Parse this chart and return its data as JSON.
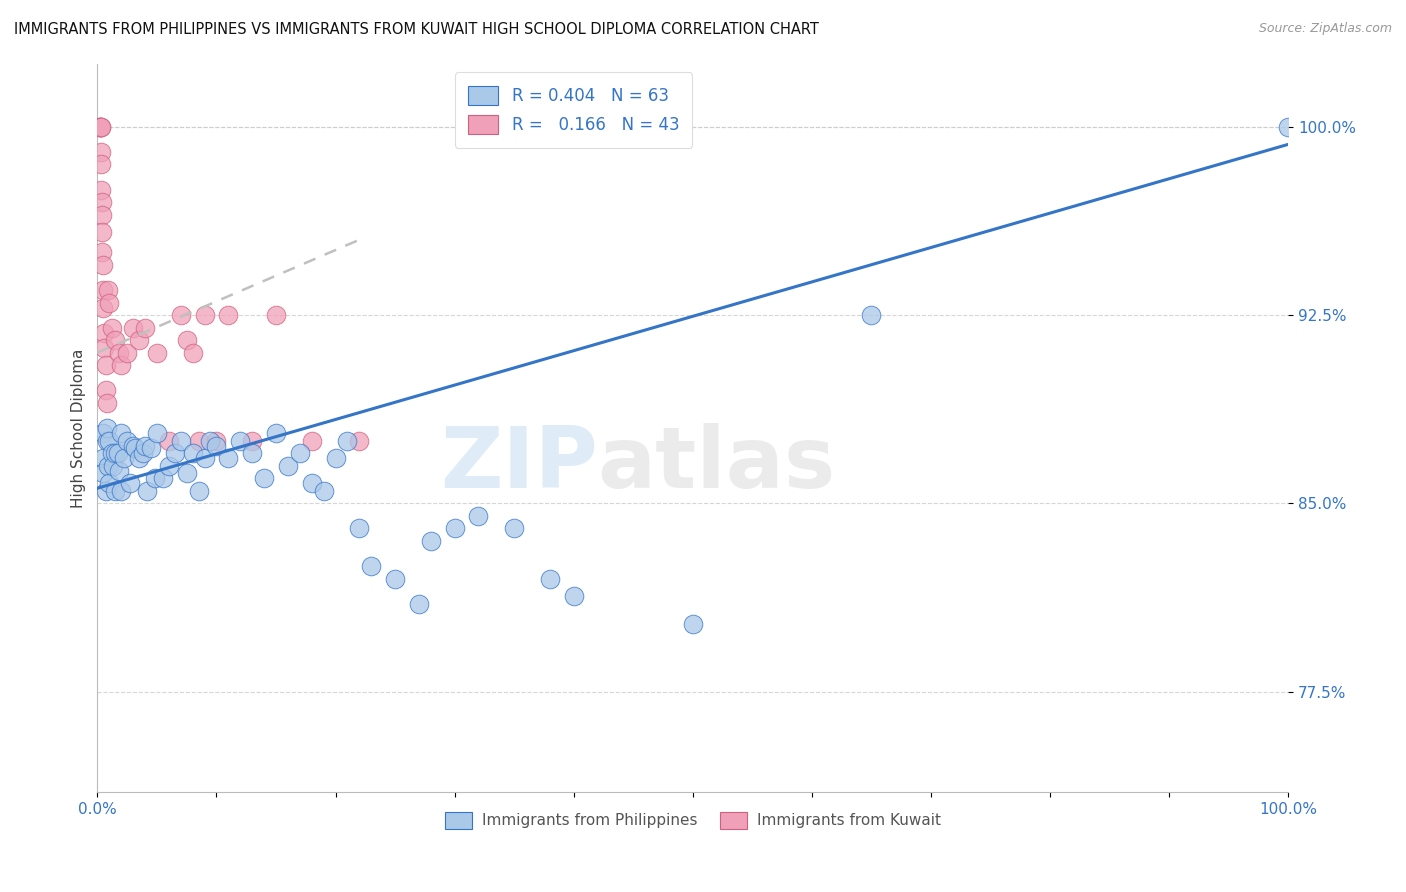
{
  "title": "IMMIGRANTS FROM PHILIPPINES VS IMMIGRANTS FROM KUWAIT HIGH SCHOOL DIPLOMA CORRELATION CHART",
  "source": "Source: ZipAtlas.com",
  "ylabel": "High School Diploma",
  "xlim": [
    0.0,
    1.0
  ],
  "ylim": [
    0.735,
    1.025
  ],
  "ytick_vals": [
    0.775,
    0.85,
    0.925,
    1.0
  ],
  "ytick_labels": [
    "77.5%",
    "85.0%",
    "92.5%",
    "100.0%"
  ],
  "xtick_vals": [
    0.0,
    0.1,
    0.2,
    0.3,
    0.4,
    0.5,
    0.6,
    0.7,
    0.8,
    0.9,
    1.0
  ],
  "xtick_labels": [
    "0.0%",
    "",
    "",
    "",
    "",
    "",
    "",
    "",
    "",
    "",
    "100.0%"
  ],
  "philippines_R": 0.404,
  "philippines_N": 63,
  "kuwait_R": 0.166,
  "kuwait_N": 43,
  "philippines_color": "#aac8e8",
  "kuwait_color": "#f0a0b8",
  "philippines_line_color": "#3575c8",
  "kuwait_line_color": "#d06080",
  "kuwait_dash_color": "#c0c0c0",
  "background_color": "#ffffff",
  "watermark_zip": "ZIP",
  "watermark_atlas": "atlas",
  "philippines_x": [
    0.005,
    0.005,
    0.005,
    0.007,
    0.008,
    0.008,
    0.009,
    0.01,
    0.01,
    0.012,
    0.013,
    0.015,
    0.015,
    0.017,
    0.018,
    0.02,
    0.02,
    0.022,
    0.025,
    0.027,
    0.03,
    0.032,
    0.035,
    0.038,
    0.04,
    0.042,
    0.045,
    0.048,
    0.05,
    0.055,
    0.06,
    0.065,
    0.07,
    0.075,
    0.08,
    0.085,
    0.09,
    0.095,
    0.1,
    0.11,
    0.12,
    0.13,
    0.14,
    0.15,
    0.16,
    0.17,
    0.18,
    0.19,
    0.2,
    0.21,
    0.22,
    0.23,
    0.25,
    0.27,
    0.28,
    0.3,
    0.32,
    0.35,
    0.38,
    0.4,
    0.5,
    0.65,
    1.0
  ],
  "philippines_y": [
    0.878,
    0.868,
    0.862,
    0.855,
    0.875,
    0.88,
    0.865,
    0.875,
    0.858,
    0.87,
    0.865,
    0.87,
    0.855,
    0.87,
    0.863,
    0.878,
    0.855,
    0.868,
    0.875,
    0.858,
    0.873,
    0.872,
    0.868,
    0.87,
    0.873,
    0.855,
    0.872,
    0.86,
    0.878,
    0.86,
    0.865,
    0.87,
    0.875,
    0.862,
    0.87,
    0.855,
    0.868,
    0.875,
    0.873,
    0.868,
    0.875,
    0.87,
    0.86,
    0.878,
    0.865,
    0.87,
    0.858,
    0.855,
    0.868,
    0.875,
    0.84,
    0.825,
    0.82,
    0.81,
    0.835,
    0.84,
    0.845,
    0.84,
    0.82,
    0.813,
    0.802,
    0.925,
    1.0
  ],
  "kuwait_x": [
    0.002,
    0.002,
    0.002,
    0.003,
    0.003,
    0.003,
    0.003,
    0.003,
    0.004,
    0.004,
    0.004,
    0.004,
    0.005,
    0.005,
    0.005,
    0.006,
    0.006,
    0.007,
    0.007,
    0.008,
    0.009,
    0.01,
    0.012,
    0.015,
    0.018,
    0.02,
    0.025,
    0.03,
    0.035,
    0.04,
    0.05,
    0.06,
    0.07,
    0.075,
    0.08,
    0.085,
    0.09,
    0.1,
    0.11,
    0.13,
    0.15,
    0.18,
    0.22
  ],
  "kuwait_y": [
    1.0,
    1.0,
    1.0,
    1.0,
    1.0,
    0.99,
    0.985,
    0.975,
    0.97,
    0.965,
    0.958,
    0.95,
    0.945,
    0.935,
    0.928,
    0.918,
    0.912,
    0.905,
    0.895,
    0.89,
    0.935,
    0.93,
    0.92,
    0.915,
    0.91,
    0.905,
    0.91,
    0.92,
    0.915,
    0.92,
    0.91,
    0.875,
    0.925,
    0.915,
    0.91,
    0.875,
    0.925,
    0.875,
    0.925,
    0.875,
    0.925,
    0.875,
    0.875
  ],
  "ph_line_x0": 0.0,
  "ph_line_x1": 1.0,
  "ph_line_y0": 0.856,
  "ph_line_y1": 0.993,
  "kw_line_x0": 0.0,
  "kw_line_x1": 0.22,
  "kw_line_y0": 0.91,
  "kw_line_y1": 0.955
}
